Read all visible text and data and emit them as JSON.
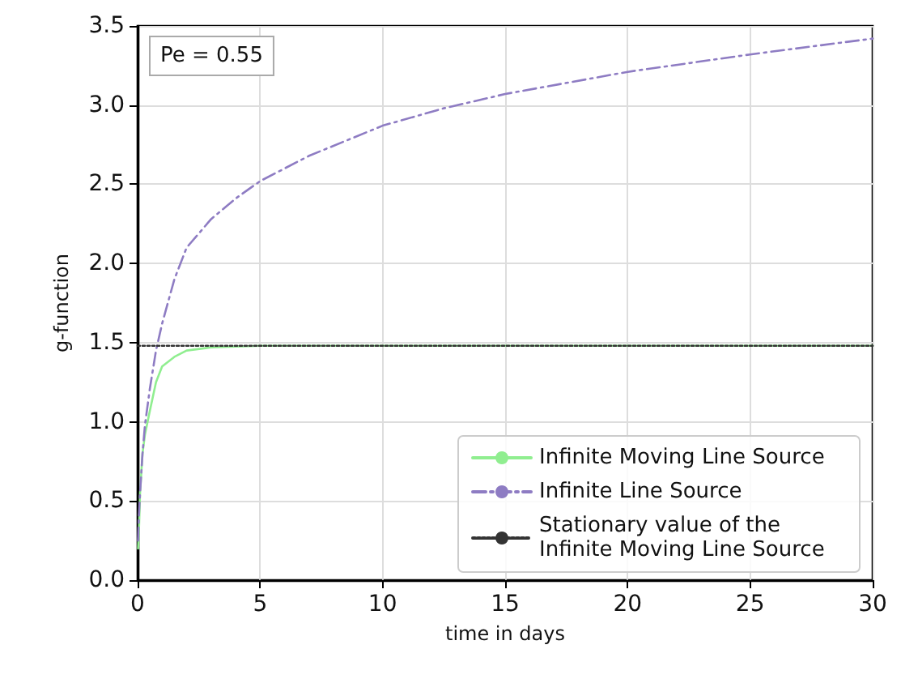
{
  "chart_data": {
    "type": "line",
    "xlabel": "time in days",
    "ylabel": "g-function",
    "annotations": [
      "Pe = 0.55"
    ],
    "xlim": [
      0,
      30
    ],
    "xticks": [
      0,
      5,
      10,
      15,
      20,
      25,
      30
    ],
    "ylim": [
      0,
      3.5
    ],
    "yticks": [
      {
        "value": 0,
        "label": "0.0"
      },
      0.5,
      {
        "value": 1,
        "label": "1.0"
      },
      1.5,
      {
        "value": 2,
        "label": "2.0"
      },
      2.5,
      {
        "value": 3,
        "label": "3.0"
      },
      3.5
    ],
    "grid": true,
    "legend": "bottom right",
    "marker": "none",
    "series": [
      {
        "name": "Infinite Moving Line Source",
        "color": "#90ee90",
        "line_style": "solid",
        "x": [
          0.02,
          0.05,
          0.1,
          0.2,
          0.3,
          0.5,
          0.75,
          1,
          1.5,
          2,
          3,
          5,
          10,
          20,
          30
        ],
        "values": [
          0.2,
          0.3,
          0.55,
          0.8,
          0.92,
          1.07,
          1.25,
          1.35,
          1.41,
          1.45,
          1.47,
          1.48,
          1.48,
          1.48,
          1.48
        ]
      },
      {
        "name": "Infinite Line Source",
        "color": "#8e7cc3",
        "line_style": "dashdot",
        "x": [
          0.02,
          0.05,
          0.1,
          0.2,
          0.3,
          0.5,
          0.75,
          1,
          1.5,
          2,
          3,
          4,
          5,
          7,
          10,
          12.5,
          15,
          20,
          25,
          30
        ],
        "values": [
          0.25,
          0.4,
          0.55,
          0.8,
          0.98,
          1.21,
          1.45,
          1.62,
          1.9,
          2.1,
          2.28,
          2.41,
          2.52,
          2.68,
          2.87,
          2.98,
          3.07,
          3.21,
          3.32,
          3.42
        ]
      },
      {
        "name": "Stationary value of the Infinite Moving Line Source",
        "color": "#333333",
        "line_style": "dotted",
        "x": [
          0,
          30
        ],
        "values": [
          1.48,
          1.48
        ]
      }
    ]
  }
}
